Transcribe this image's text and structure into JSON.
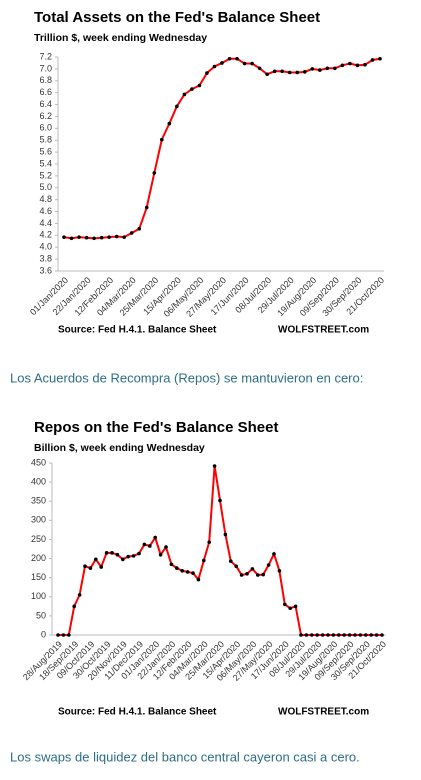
{
  "chart_data": [
    {
      "type": "line",
      "title": "Total Assets on the Fed's Balance Sheet",
      "subtitle": "Trillion $, week ending Wednesday",
      "source": "Source: Fed H.4.1. Balance Sheet",
      "credit": "WOLFSTREET.com",
      "categories": [
        "01/Jan/2020",
        null,
        null,
        "22/Jan/2020",
        null,
        null,
        "12/Feb/2020",
        null,
        null,
        "04/Mar/2020",
        null,
        null,
        "25/Mar/2020",
        null,
        null,
        "15/Apr/2020",
        null,
        null,
        "06/May/2020",
        null,
        null,
        "27/May/2020",
        null,
        null,
        "17/Jun/2020",
        null,
        null,
        "08/Jul/2020",
        null,
        null,
        "29/Jul/2020",
        null,
        null,
        "19/Aug/2020",
        null,
        null,
        "09/Sep/2020",
        null,
        null,
        "30/Sep/2020",
        null,
        null,
        "21/Oct/2020"
      ],
      "series": [
        {
          "color": "#ff0000",
          "marker_color": "#000000",
          "values": [
            4.17,
            4.15,
            4.17,
            4.16,
            4.15,
            4.16,
            4.17,
            4.18,
            4.17,
            4.24,
            4.31,
            4.67,
            5.25,
            5.81,
            6.08,
            6.37,
            6.57,
            6.66,
            6.72,
            6.93,
            7.04,
            7.1,
            7.17,
            7.17,
            7.09,
            7.09,
            7.01,
            6.91,
            6.96,
            6.96,
            6.94,
            6.94,
            6.95,
            7.0,
            6.98,
            7.01,
            7.01,
            7.06,
            7.09,
            7.06,
            7.07,
            7.15,
            7.17
          ]
        }
      ],
      "ylim": [
        3.6,
        7.2
      ],
      "yticks": [
        3.6,
        3.8,
        {
          "value": 4,
          "label": "4.0"
        },
        4.2,
        4.4,
        4.6,
        4.8,
        {
          "value": 5,
          "label": "5.0"
        },
        5.2,
        5.4,
        5.6,
        5.8,
        {
          "value": 6,
          "label": "6.0"
        },
        6.2,
        6.4,
        6.6,
        6.8,
        {
          "value": 7,
          "label": "7.0"
        },
        7.2
      ],
      "grid": false
    },
    {
      "type": "line",
      "title": "Repos on the Fed's Balance Sheet",
      "subtitle": "Billion $, week ending Wednesday",
      "source": "Source: Fed H.4.1. Balance Sheet",
      "credit": "WOLFSTREET.com",
      "categories": [
        "28/Aug/2019",
        null,
        null,
        "18/Sep/2019",
        null,
        null,
        "09/Oct/2019",
        null,
        null,
        "30/Oct/2019",
        null,
        null,
        "20/Nov/2019",
        null,
        null,
        "11/Dec/2019",
        null,
        null,
        "01/Jan/2020",
        null,
        null,
        "22/Jan/2020",
        null,
        null,
        "12/Feb/2020",
        null,
        null,
        "04/Mar/2020",
        null,
        null,
        "25/Mar/2020",
        null,
        null,
        "15/Apr/2020",
        null,
        null,
        "06/May/2020",
        null,
        null,
        "27/May/2020",
        null,
        null,
        "17/Jun/2020",
        null,
        null,
        "08/Jul/2020",
        null,
        null,
        "29/Jul/2020",
        null,
        null,
        "19/Aug/2020",
        null,
        null,
        "09/Sep/2020",
        null,
        null,
        "30/Sep/2020",
        null,
        null,
        "21/Oct/2020"
      ],
      "series": [
        {
          "color": "#ff0000",
          "marker_color": "#000000",
          "values": [
            0,
            0,
            0,
            75,
            105,
            180,
            175,
            198,
            178,
            215,
            215,
            210,
            198,
            205,
            207,
            213,
            237,
            233,
            255,
            210,
            230,
            185,
            175,
            168,
            165,
            162,
            145,
            195,
            243,
            442,
            352,
            263,
            193,
            180,
            157,
            160,
            173,
            157,
            158,
            183,
            212,
            168,
            80,
            70,
            75,
            0,
            0,
            0,
            0,
            0,
            0,
            0,
            0,
            0,
            0,
            0,
            0,
            0,
            0,
            0,
            0
          ]
        }
      ],
      "ylim": [
        0,
        450
      ],
      "yticks": [
        0,
        50,
        100,
        150,
        200,
        250,
        300,
        350,
        400,
        450
      ],
      "grid": false
    }
  ],
  "captions": [
    "Los Acuerdos de Recompra (Repos) se mantuvieron en cero:",
    "Los swaps de liquidez del banco central cayeron casi a cero."
  ]
}
